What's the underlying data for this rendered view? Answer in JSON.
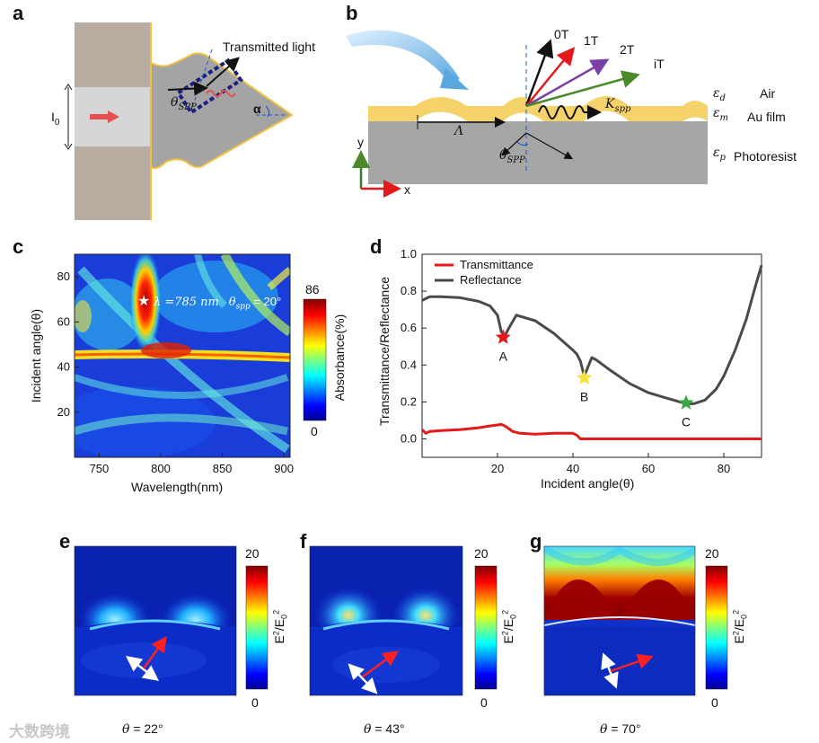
{
  "panels": {
    "a": "a",
    "b": "b",
    "c": "c",
    "d": "d",
    "e": "e",
    "f": "f",
    "g": "g"
  },
  "panel_a": {
    "transmitted_label": "Transmitted light",
    "i0_label": "I",
    "i0_sub": "0",
    "theta_label": "θ",
    "theta_sub": "SPP",
    "alpha_label": "α"
  },
  "panel_b": {
    "orders": [
      "0T",
      "1T",
      "2T",
      "iT"
    ],
    "eps_d": "ε",
    "eps_d_sub": "d",
    "eps_m": "ε",
    "eps_m_sub": "m",
    "eps_p": "ε",
    "eps_p_sub": "p",
    "air": "Air",
    "au": "Au film",
    "photoresist": "Photoresist",
    "lambda_label": "Λ",
    "k_label": "K",
    "k_sub": "spp",
    "theta_label": "θ",
    "theta_sub": "SPP",
    "axis_y": "y",
    "axis_x": "x"
  },
  "panel_c": {
    "xlabel": "Wavelength(nm)",
    "ylabel": "Incident angle(θ)",
    "xticks": [
      "750",
      "800",
      "850",
      "900"
    ],
    "yticks": [
      "20",
      "40",
      "60",
      "80"
    ],
    "annotation_star": "★",
    "annotation_lambda": "λ =785 nm",
    "annotation_theta": "θ",
    "annotation_theta_sub": "spp",
    "annotation_theta_val": "= 20°",
    "colorbar_max": "86",
    "colorbar_min": "0",
    "colorbar_label": "Absorbance(%)"
  },
  "chart_data": [
    {
      "type": "heatmap",
      "title": "",
      "xlabel": "Wavelength(nm)",
      "ylabel": "Incident angle(θ)",
      "xlim": [
        730,
        905
      ],
      "ylim": [
        0,
        90
      ],
      "colorbar": {
        "label": "Absorbance(%)",
        "min": 0,
        "max": 86
      },
      "annotation": {
        "wavelength": 785,
        "angle": 69,
        "text": "λ =785 nm  θspp = 20°"
      }
    },
    {
      "type": "line",
      "title": "",
      "xlabel": "Incident angle(θ)",
      "ylabel": "Transmittance/Reflectance",
      "xlim": [
        0,
        90
      ],
      "ylim": [
        -0.1,
        1.0
      ],
      "xticks": [
        20,
        40,
        60,
        80
      ],
      "yticks": [
        0.0,
        0.2,
        0.4,
        0.6,
        0.8,
        1.0
      ],
      "legend_position": "top-left",
      "series": [
        {
          "name": "Transmittance",
          "color": "#e3191c",
          "x": [
            0,
            1,
            2,
            5,
            10,
            15,
            18,
            20,
            21,
            22,
            24,
            26,
            30,
            35,
            40,
            41,
            42,
            45,
            50,
            60,
            70,
            80,
            90
          ],
          "y": [
            0.05,
            0.03,
            0.04,
            0.045,
            0.05,
            0.06,
            0.07,
            0.075,
            0.078,
            0.07,
            0.04,
            0.03,
            0.025,
            0.03,
            0.03,
            0.02,
            0.0,
            0.0,
            0.0,
            0.0,
            0.0,
            0.0,
            0.0
          ]
        },
        {
          "name": "Reflectance",
          "color": "#4a4a4a",
          "x": [
            0,
            2,
            5,
            10,
            15,
            18,
            20,
            21,
            22,
            23,
            25,
            30,
            35,
            40,
            41,
            42,
            43,
            44,
            45,
            46,
            50,
            55,
            60,
            65,
            70,
            72,
            75,
            78,
            80,
            83,
            86,
            88,
            90
          ],
          "y": [
            0.75,
            0.77,
            0.77,
            0.765,
            0.745,
            0.72,
            0.67,
            0.58,
            0.56,
            0.6,
            0.67,
            0.64,
            0.57,
            0.48,
            0.46,
            0.42,
            0.34,
            0.39,
            0.44,
            0.43,
            0.37,
            0.3,
            0.25,
            0.22,
            0.19,
            0.19,
            0.21,
            0.27,
            0.34,
            0.48,
            0.65,
            0.8,
            0.94
          ]
        }
      ],
      "markers": [
        {
          "label": "A",
          "x": 21.5,
          "y": 0.55,
          "color": "#e3191c"
        },
        {
          "label": "B",
          "x": 43,
          "y": 0.33,
          "color": "#f5e23a"
        },
        {
          "label": "C",
          "x": 70,
          "y": 0.195,
          "color": "#3aa845"
        }
      ]
    }
  ],
  "panel_d": {
    "ylabel": "Transmittance/Reflectance",
    "xlabel": "Incident angle(θ)",
    "xticks": [
      "20",
      "40",
      "60",
      "80"
    ],
    "yticks": [
      "0.0",
      "0.2",
      "0.4",
      "0.6",
      "0.8",
      "1.0"
    ],
    "legend_trans": "Transmittance",
    "legend_refl": "Reflectance"
  },
  "field_maps": [
    {
      "theta": "θ",
      "caption": "= 22°",
      "cb_max": "20",
      "cb_min": "0",
      "cb_label": "E",
      "cb_sup1": "2",
      "cb_mid": "/E",
      "cb_sub": "0",
      "cb_sup2": "2"
    },
    {
      "theta": "θ",
      "caption": "= 43°",
      "cb_max": "20",
      "cb_min": "0",
      "cb_label": "E",
      "cb_sup1": "2",
      "cb_mid": "/E",
      "cb_sub": "0",
      "cb_sup2": "2"
    },
    {
      "theta": "θ",
      "caption": "= 70°",
      "cb_max": "20",
      "cb_min": "0",
      "cb_label": "E",
      "cb_sup1": "2",
      "cb_mid": "/E",
      "cb_sub": "0",
      "cb_sup2": "2"
    }
  ],
  "watermark": "大数跨境"
}
